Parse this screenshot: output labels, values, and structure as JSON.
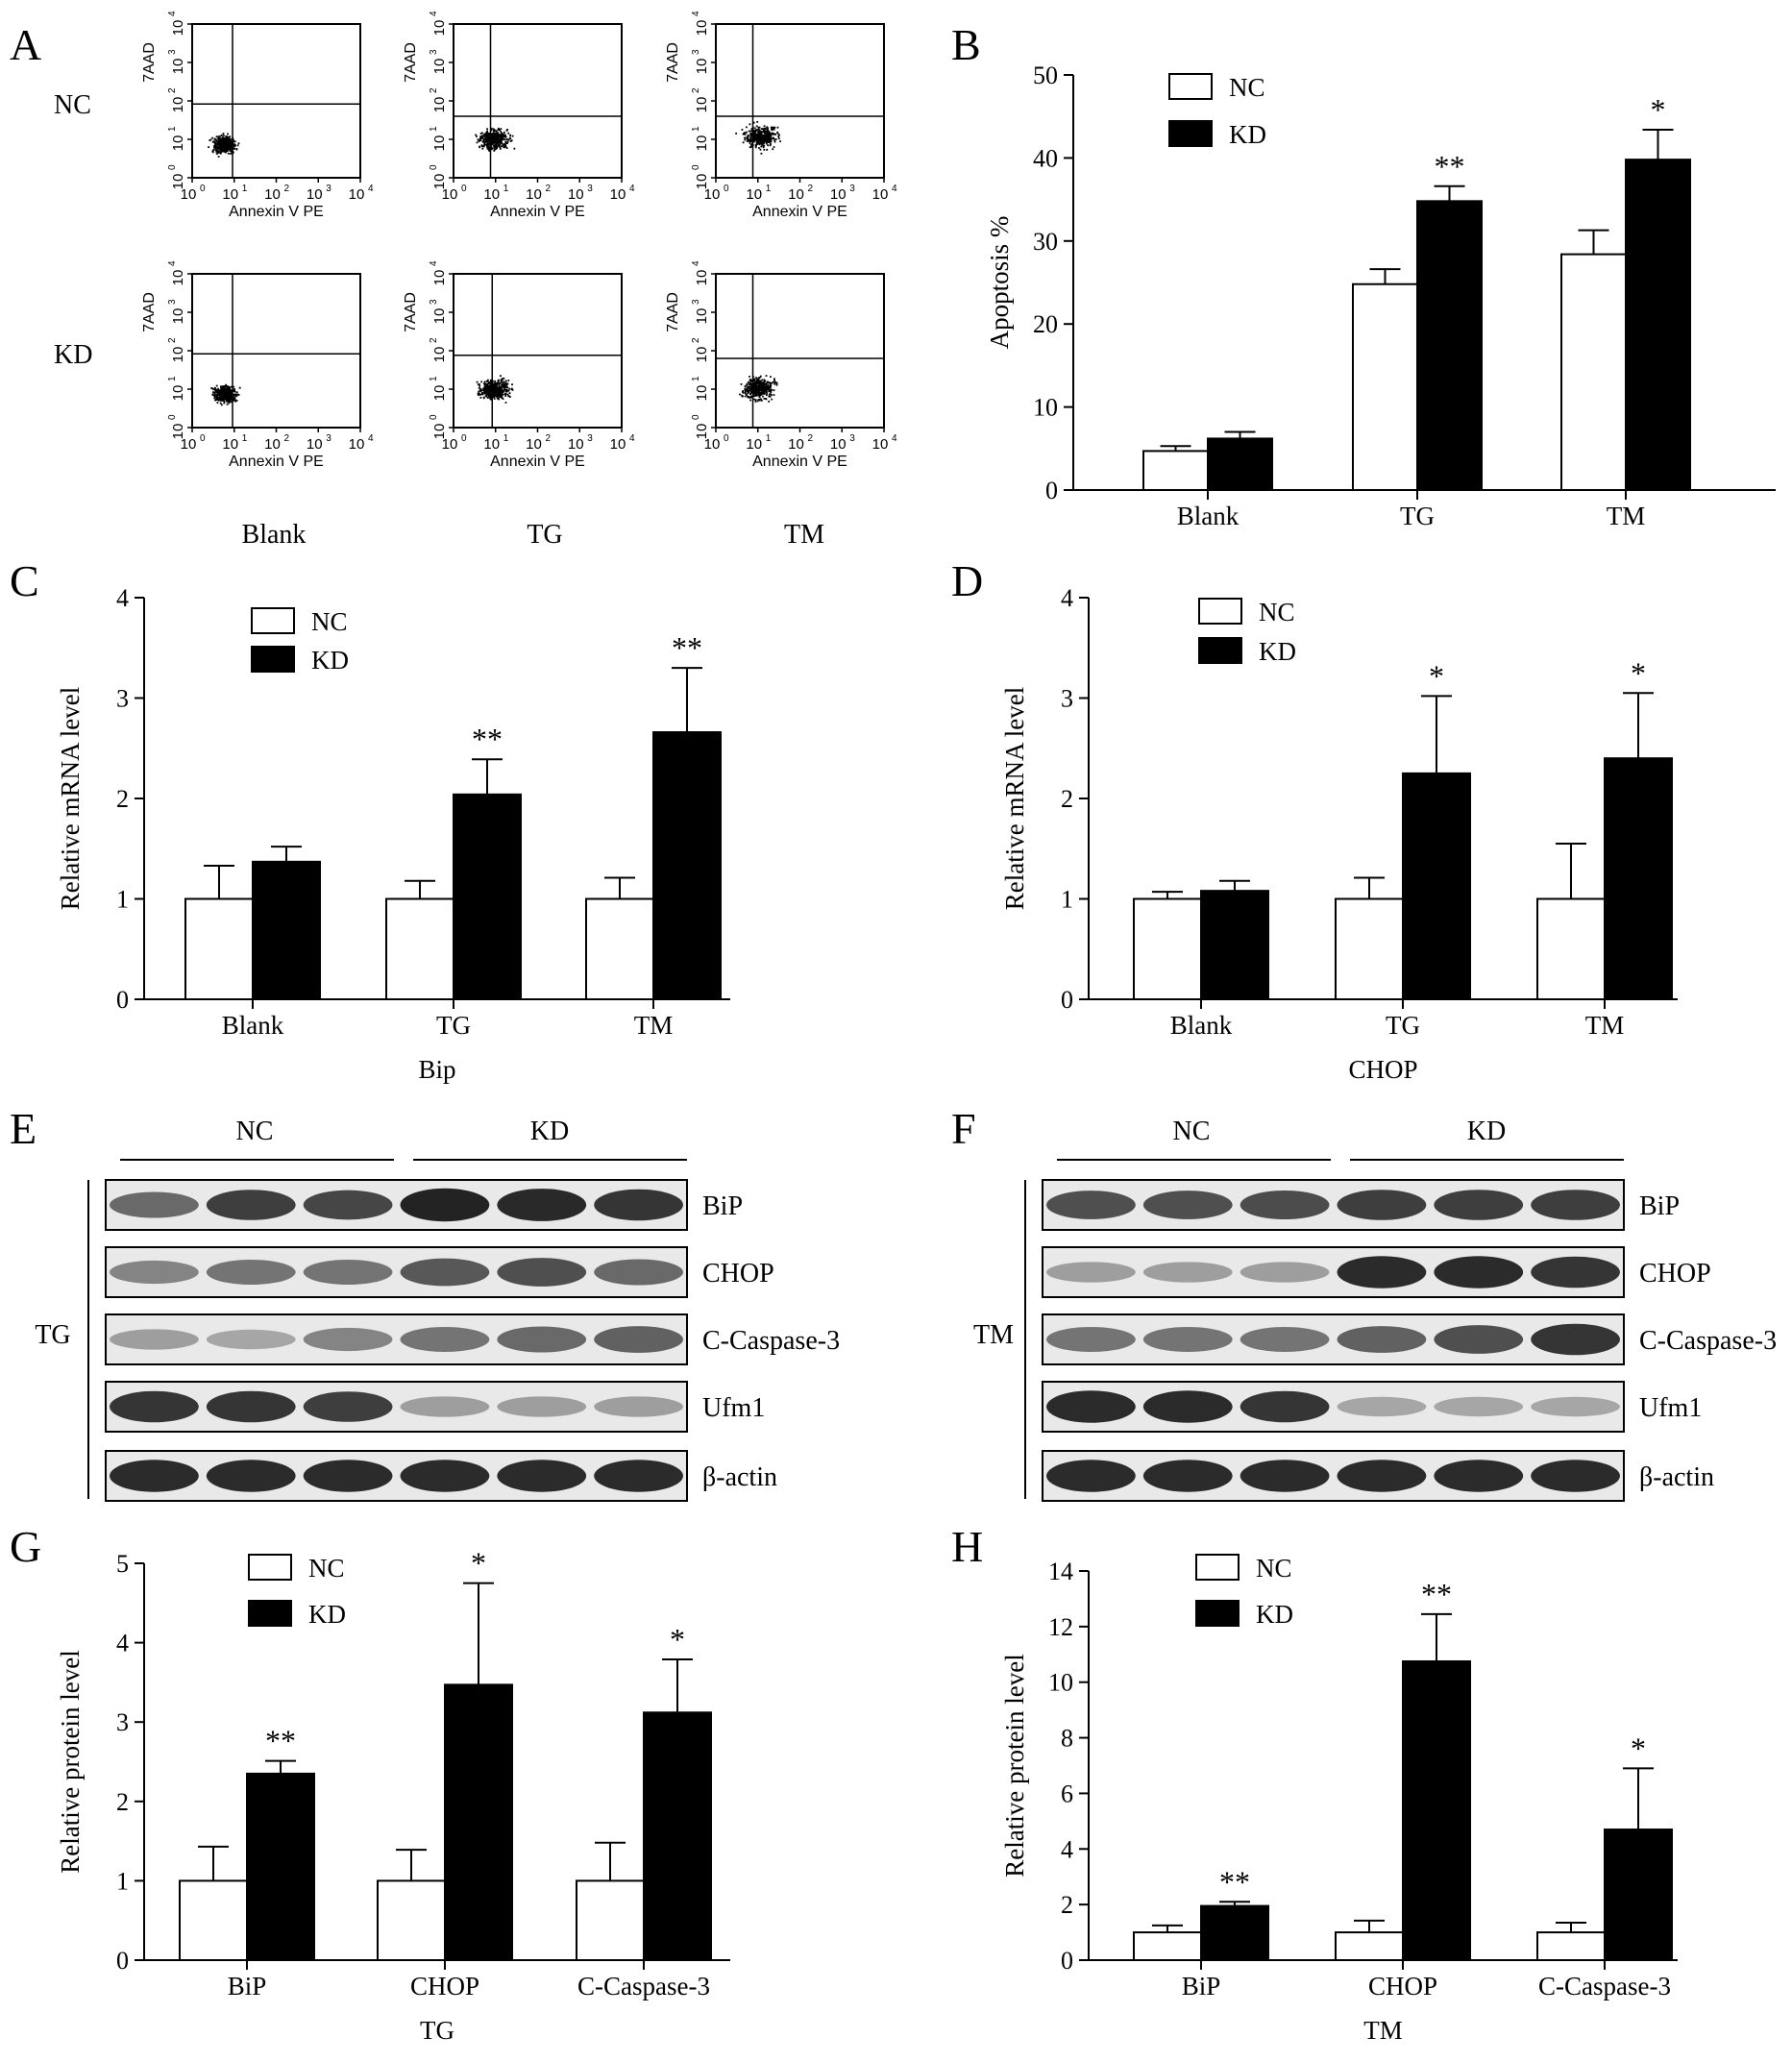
{
  "panel_letters": [
    "A",
    "B",
    "C",
    "D",
    "E",
    "F",
    "G",
    "H"
  ],
  "colors": {
    "NC": "#ffffff",
    "KD": "#000000",
    "band": "#1a1a1a",
    "blot_bg": "#e9e9e9"
  },
  "panel_A": {
    "row_labels": [
      "NC",
      "KD"
    ],
    "col_labels": [
      "Blank",
      "TG",
      "TM"
    ],
    "x_axis_label": "Annexin V PE",
    "y_axis_label": "7AAD",
    "tick_labels": [
      "10",
      "10",
      "10",
      "10",
      "10"
    ],
    "tick_exponents": [
      "0",
      "1",
      "2",
      "3",
      "4"
    ]
  },
  "panel_E": {
    "group_labels": [
      "NC",
      "KD"
    ],
    "side_label": "TG",
    "rows": [
      {
        "label": "BiP",
        "intensity": [
          0.55,
          0.8,
          0.75,
          0.95,
          0.92,
          0.85
        ]
      },
      {
        "label": "CHOP",
        "intensity": [
          0.4,
          0.5,
          0.5,
          0.65,
          0.7,
          0.55
        ]
      },
      {
        "label": "C-Caspase-3",
        "intensity": [
          0.25,
          0.2,
          0.4,
          0.5,
          0.55,
          0.6
        ]
      },
      {
        "label": "Ufm1",
        "intensity": [
          0.85,
          0.85,
          0.8,
          0.25,
          0.25,
          0.25
        ]
      },
      {
        "label": "β-actin",
        "intensity": [
          0.9,
          0.9,
          0.9,
          0.9,
          0.9,
          0.9
        ]
      }
    ]
  },
  "panel_F": {
    "group_labels": [
      "NC",
      "KD"
    ],
    "side_label": "TM",
    "rows": [
      {
        "label": "BiP",
        "intensity": [
          0.7,
          0.7,
          0.72,
          0.8,
          0.8,
          0.8
        ]
      },
      {
        "label": "CHOP",
        "intensity": [
          0.25,
          0.25,
          0.25,
          0.9,
          0.9,
          0.85
        ]
      },
      {
        "label": "C-Caspase-3",
        "intensity": [
          0.5,
          0.5,
          0.5,
          0.6,
          0.7,
          0.85
        ]
      },
      {
        "label": "Ufm1",
        "intensity": [
          0.9,
          0.9,
          0.85,
          0.2,
          0.2,
          0.2
        ]
      },
      {
        "label": "β-actin",
        "intensity": [
          0.9,
          0.9,
          0.9,
          0.9,
          0.9,
          0.9
        ]
      }
    ]
  },
  "chart_data": [
    {
      "id": "B",
      "type": "bar",
      "categories": [
        "Blank",
        "TG",
        "TM"
      ],
      "series": [
        {
          "name": "NC",
          "values": [
            4.7,
            24.8,
            28.4
          ],
          "errors": [
            0.6,
            1.8,
            2.9
          ]
        },
        {
          "name": "KD",
          "values": [
            6.2,
            34.8,
            39.8
          ],
          "errors": [
            0.8,
            1.8,
            3.6
          ]
        }
      ],
      "significance": [
        "",
        "**",
        "*"
      ],
      "ylabel": "Apoptosis %",
      "xlabel": "",
      "ylim": [
        0,
        50
      ],
      "yticks": [
        0,
        10,
        20,
        30,
        40,
        50
      ],
      "legend": "top-left",
      "grid": false
    },
    {
      "id": "C",
      "type": "bar",
      "categories": [
        "Blank",
        "TG",
        "TM"
      ],
      "series": [
        {
          "name": "NC",
          "values": [
            1.0,
            1.0,
            1.0
          ],
          "errors": [
            0.33,
            0.18,
            0.21
          ]
        },
        {
          "name": "KD",
          "values": [
            1.37,
            2.04,
            2.66
          ],
          "errors": [
            0.15,
            0.35,
            0.64
          ]
        }
      ],
      "significance": [
        "",
        "**",
        "**"
      ],
      "ylabel": "Relative mRNA level",
      "xlabel": "Bip",
      "ylim": [
        0,
        4
      ],
      "yticks": [
        0,
        1,
        2,
        3,
        4
      ],
      "legend": "top-left",
      "grid": false
    },
    {
      "id": "D",
      "type": "bar",
      "categories": [
        "Blank",
        "TG",
        "TM"
      ],
      "series": [
        {
          "name": "NC",
          "values": [
            1.0,
            1.0,
            1.0
          ],
          "errors": [
            0.07,
            0.21,
            0.55
          ]
        },
        {
          "name": "KD",
          "values": [
            1.08,
            2.25,
            2.4
          ],
          "errors": [
            0.1,
            0.77,
            0.65
          ]
        }
      ],
      "significance": [
        "",
        "*",
        "*"
      ],
      "ylabel": "Relative mRNA level",
      "xlabel": "CHOP",
      "ylim": [
        0,
        4
      ],
      "yticks": [
        0,
        1,
        2,
        3,
        4
      ],
      "legend": "top-left",
      "grid": false
    },
    {
      "id": "G",
      "type": "bar",
      "categories": [
        "BiP",
        "CHOP",
        "C-Caspase-3"
      ],
      "series": [
        {
          "name": "NC",
          "values": [
            1.0,
            1.0,
            1.0
          ],
          "errors": [
            0.43,
            0.39,
            0.48
          ]
        },
        {
          "name": "KD",
          "values": [
            2.35,
            3.47,
            3.12
          ],
          "errors": [
            0.16,
            1.28,
            0.67
          ]
        }
      ],
      "significance": [
        "**",
        "*",
        "*"
      ],
      "ylabel": "Relative protein level",
      "xlabel": "TG",
      "ylim": [
        0,
        5
      ],
      "yticks": [
        0,
        1,
        2,
        3,
        4,
        5
      ],
      "legend": "top-left",
      "grid": false
    },
    {
      "id": "H",
      "type": "bar",
      "categories": [
        "BiP",
        "CHOP",
        "C-Caspase-3"
      ],
      "series": [
        {
          "name": "NC",
          "values": [
            1.0,
            1.0,
            1.0
          ],
          "errors": [
            0.25,
            0.42,
            0.35
          ]
        },
        {
          "name": "KD",
          "values": [
            1.95,
            10.75,
            4.7
          ],
          "errors": [
            0.15,
            1.7,
            2.2
          ]
        }
      ],
      "significance": [
        "**",
        "**",
        "*"
      ],
      "ylabel": "Relative protein level",
      "xlabel": "TM",
      "ylim": [
        0,
        14
      ],
      "yticks": [
        0,
        2,
        4,
        6,
        8,
        10,
        12,
        14
      ],
      "legend": "top-left",
      "grid": false
    }
  ]
}
